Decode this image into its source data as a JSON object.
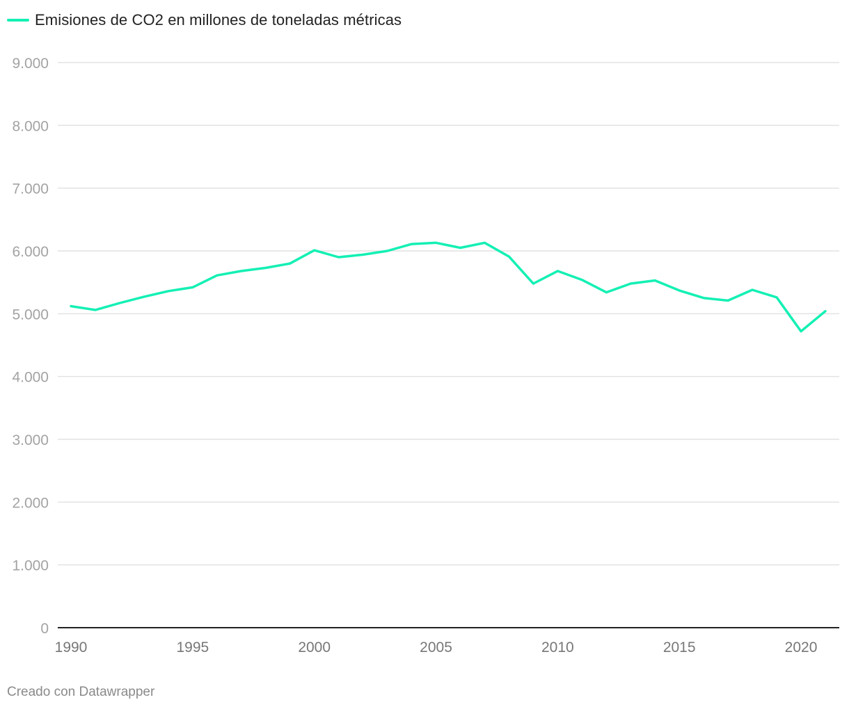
{
  "legend": {
    "label": "Emisiones de CO2 en millones de toneladas métricas"
  },
  "footer": {
    "credit": "Creado con Datawrapper"
  },
  "colors": {
    "series": "#14f0b4"
  },
  "chart_data": {
    "type": "line",
    "title": "",
    "xlabel": "",
    "ylabel": "",
    "ylim": [
      0,
      9000
    ],
    "xlim": [
      1990,
      2021
    ],
    "yticks": [
      {
        "value": 0,
        "label": "0"
      },
      {
        "value": 1000,
        "label": "1.000"
      },
      {
        "value": 2000,
        "label": "2.000"
      },
      {
        "value": 3000,
        "label": "3.000"
      },
      {
        "value": 4000,
        "label": "4.000"
      },
      {
        "value": 5000,
        "label": "5.000"
      },
      {
        "value": 6000,
        "label": "6.000"
      },
      {
        "value": 7000,
        "label": "7.000"
      },
      {
        "value": 8000,
        "label": "8.000"
      },
      {
        "value": 9000,
        "label": "9.000"
      }
    ],
    "xticks": [
      {
        "value": 1990,
        "label": "1990"
      },
      {
        "value": 1995,
        "label": "1995"
      },
      {
        "value": 2000,
        "label": "2000"
      },
      {
        "value": 2005,
        "label": "2005"
      },
      {
        "value": 2010,
        "label": "2010"
      },
      {
        "value": 2015,
        "label": "2015"
      },
      {
        "value": 2020,
        "label": "2020"
      }
    ],
    "series": [
      {
        "name": "Emisiones de CO2 en millones de toneladas métricas",
        "x": [
          1990,
          1991,
          1992,
          1993,
          1994,
          1995,
          1996,
          1997,
          1998,
          1999,
          2000,
          2001,
          2002,
          2003,
          2004,
          2005,
          2006,
          2007,
          2008,
          2009,
          2010,
          2011,
          2012,
          2013,
          2014,
          2015,
          2016,
          2017,
          2018,
          2019,
          2020,
          2021
        ],
        "values": [
          5120,
          5060,
          5170,
          5270,
          5360,
          5420,
          5610,
          5680,
          5730,
          5800,
          6010,
          5900,
          5940,
          6000,
          6110,
          6130,
          6050,
          6130,
          5910,
          5480,
          5680,
          5540,
          5340,
          5480,
          5530,
          5370,
          5250,
          5210,
          5380,
          5260,
          4720,
          5040
        ]
      }
    ]
  }
}
